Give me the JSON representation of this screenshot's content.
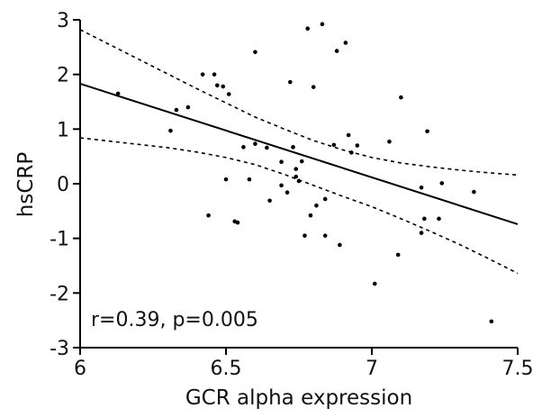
{
  "chart_data": {
    "type": "scatter",
    "xlabel": "GCR alpha expression",
    "ylabel": "hsCRP",
    "xlim": [
      6,
      7.5
    ],
    "ylim": [
      -3,
      3
    ],
    "xticks": [
      6,
      6.5,
      7,
      7.5
    ],
    "xtick_labels": [
      "6",
      "6.5",
      "7",
      "7.5"
    ],
    "yticks": [
      -3,
      -2,
      -1,
      0,
      1,
      2,
      3
    ],
    "ytick_labels": [
      "-3",
      "-2",
      "-1",
      "0",
      "1",
      "2",
      "3"
    ],
    "grid": false,
    "annotation": "r=0.39, p=0.005",
    "points": [
      [
        6.13,
        1.65
      ],
      [
        6.31,
        0.97
      ],
      [
        6.33,
        1.35
      ],
      [
        6.37,
        1.4
      ],
      [
        6.42,
        2.0
      ],
      [
        6.44,
        -0.58
      ],
      [
        6.46,
        2.0
      ],
      [
        6.47,
        1.8
      ],
      [
        6.49,
        1.78
      ],
      [
        6.5,
        0.08
      ],
      [
        6.51,
        1.64
      ],
      [
        6.53,
        -0.69
      ],
      [
        6.54,
        -0.71
      ],
      [
        6.56,
        0.67
      ],
      [
        6.58,
        0.08
      ],
      [
        6.6,
        2.41
      ],
      [
        6.6,
        0.73
      ],
      [
        6.64,
        0.66
      ],
      [
        6.65,
        -0.31
      ],
      [
        6.69,
        0.4
      ],
      [
        6.69,
        -0.03
      ],
      [
        6.71,
        -0.16
      ],
      [
        6.72,
        1.86
      ],
      [
        6.73,
        0.67
      ],
      [
        6.74,
        0.27
      ],
      [
        6.74,
        0.13
      ],
      [
        6.75,
        0.05
      ],
      [
        6.76,
        0.41
      ],
      [
        6.77,
        -0.95
      ],
      [
        6.78,
        2.84
      ],
      [
        6.79,
        -0.58
      ],
      [
        6.8,
        1.77
      ],
      [
        6.81,
        -0.4
      ],
      [
        6.83,
        2.92
      ],
      [
        6.84,
        -0.28
      ],
      [
        6.84,
        -0.95
      ],
      [
        6.87,
        0.71
      ],
      [
        6.88,
        2.43
      ],
      [
        6.89,
        -1.12
      ],
      [
        6.91,
        2.58
      ],
      [
        6.92,
        0.89
      ],
      [
        6.93,
        0.57
      ],
      [
        6.95,
        0.7
      ],
      [
        7.01,
        -1.83
      ],
      [
        7.06,
        0.77
      ],
      [
        7.09,
        -1.3
      ],
      [
        7.1,
        1.58
      ],
      [
        7.17,
        -0.07
      ],
      [
        7.17,
        -0.9
      ],
      [
        7.18,
        -0.64
      ],
      [
        7.19,
        0.96
      ],
      [
        7.23,
        -0.64
      ],
      [
        7.24,
        0.01
      ],
      [
        7.35,
        -0.15
      ],
      [
        7.41,
        -2.52
      ]
    ],
    "fit_line": {
      "x": [
        6,
        7.5
      ],
      "y": [
        1.83,
        -0.74
      ]
    },
    "confidence_band": {
      "x": [
        6.0,
        6.1,
        6.2,
        6.3,
        6.4,
        6.5,
        6.6,
        6.7,
        6.8,
        6.9,
        7.0,
        7.1,
        7.2,
        7.3,
        7.4,
        7.5
      ],
      "upper": [
        2.82,
        2.55,
        2.28,
        2.01,
        1.74,
        1.48,
        1.22,
        1.0,
        0.79,
        0.62,
        0.48,
        0.38,
        0.31,
        0.25,
        0.2,
        0.16
      ],
      "lower": [
        0.84,
        0.78,
        0.72,
        0.66,
        0.58,
        0.48,
        0.35,
        0.17,
        -0.03,
        -0.23,
        -0.42,
        -0.64,
        -0.87,
        -1.11,
        -1.37,
        -1.64
      ]
    }
  }
}
